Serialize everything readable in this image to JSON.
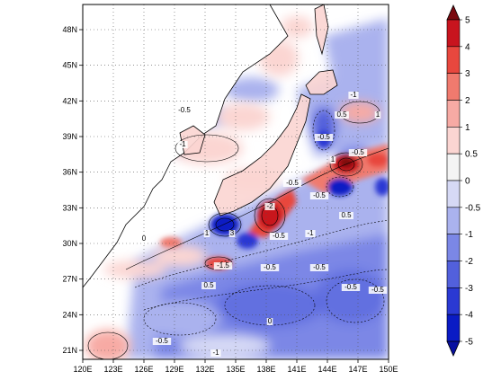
{
  "map": {
    "lon_ticks": [
      "120E",
      "123E",
      "126E",
      "129E",
      "132E",
      "135E",
      "138E",
      "141E",
      "144E",
      "147E",
      "150E"
    ],
    "lat_ticks": [
      "21N",
      "24N",
      "27N",
      "30N",
      "33N",
      "36N",
      "39N",
      "42N",
      "45N",
      "48N"
    ],
    "contour_labels": [
      "-0.5",
      "-1",
      "0",
      "1",
      "3",
      "-2",
      "-1.5",
      "0.5",
      "-0.5",
      "-1",
      "0",
      "-0.5",
      "-0.5",
      "-0.5",
      "-0.5",
      "-0.5",
      "1",
      "0.5",
      "-0.5",
      "-0.5",
      "-1",
      "-0.5",
      "-1",
      "-0.5",
      "0.5",
      "1"
    ]
  },
  "colorbar": {
    "levels": [
      "5",
      "4",
      "3",
      "2",
      "1",
      "0.5",
      "0",
      "-0.5",
      "-1",
      "-2",
      "-3",
      "-4",
      "-5"
    ],
    "colors": [
      "#7a0a10",
      "#c8141e",
      "#e8473e",
      "#f07a6e",
      "#f7aaa4",
      "#fbd5d2",
      "#f4f4f4",
      "#d6d9f5",
      "#aab2ee",
      "#7b87e6",
      "#5260dc",
      "#2a39d3",
      "#0a1bc4",
      "#0810a0"
    ]
  }
}
